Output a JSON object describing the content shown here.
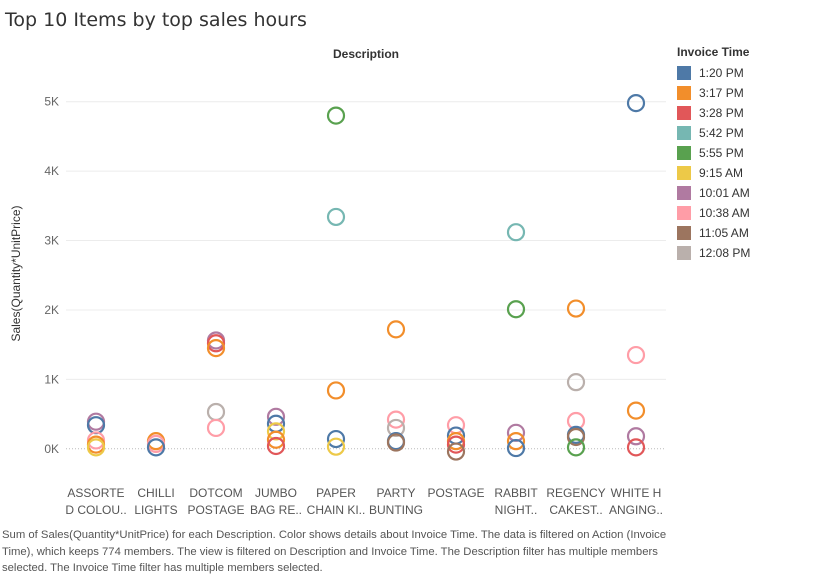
{
  "title": "Top 10 Items by top sales hours",
  "caption": "Sum of Sales(Quantity*UnitPrice) for each Description.  Color shows details about Invoice Time. The data is filtered on Action (Invoice Time), which keeps 774 members. The view is filtered on Description and Invoice Time. The Description filter has multiple members selected. The Invoice Time filter has multiple members selected.",
  "legend": {
    "title": "Invoice Time",
    "items": [
      {
        "label": "1:20 PM",
        "color": "#4e79a7"
      },
      {
        "label": "3:17 PM",
        "color": "#f28e2b"
      },
      {
        "label": "3:28 PM",
        "color": "#e15759"
      },
      {
        "label": "5:42 PM",
        "color": "#76b7b2"
      },
      {
        "label": "5:55 PM",
        "color": "#59a14f"
      },
      {
        "label": "9:15 AM",
        "color": "#edc948"
      },
      {
        "label": "10:01 AM",
        "color": "#b07aa1"
      },
      {
        "label": "10:38 AM",
        "color": "#ff9da7"
      },
      {
        "label": "11:05 AM",
        "color": "#9c755f"
      },
      {
        "label": "12:08 PM",
        "color": "#bab0ac"
      }
    ]
  },
  "chart_data": {
    "type": "scatter",
    "title": "Top 10 Items by top sales hours",
    "column_header": "Description",
    "ylabel": "Sales(Quantity*UnitPrice)",
    "ylim": [
      -450,
      5500
    ],
    "y_ticks": [
      {
        "value": 0,
        "label": "0K"
      },
      {
        "value": 1000,
        "label": "1K"
      },
      {
        "value": 2000,
        "label": "2K"
      },
      {
        "value": 3000,
        "label": "3K"
      },
      {
        "value": 4000,
        "label": "4K"
      },
      {
        "value": 5000,
        "label": "5K"
      }
    ],
    "categories": [
      {
        "line1": "ASSORTE",
        "line2": "D COLOU.."
      },
      {
        "line1": "CHILLI",
        "line2": "LIGHTS"
      },
      {
        "line1": "DOTCOM",
        "line2": "POSTAGE"
      },
      {
        "line1": "JUMBO",
        "line2": "BAG RE.."
      },
      {
        "line1": "PAPER",
        "line2": "CHAIN KI.."
      },
      {
        "line1": "PARTY",
        "line2": "BUNTING"
      },
      {
        "line1": "POSTAGE",
        "line2": ""
      },
      {
        "line1": "RABBIT",
        "line2": "NIGHT.."
      },
      {
        "line1": "REGENCY",
        "line2": "CAKEST.."
      },
      {
        "line1": "WHITE H",
        "line2": "ANGING.."
      }
    ],
    "grid": true,
    "legend_position": "right",
    "points": [
      {
        "c": 0,
        "color": "#b07aa1",
        "y": 390
      },
      {
        "c": 0,
        "color": "#4e79a7",
        "y": 340
      },
      {
        "c": 0,
        "color": "#ff9da7",
        "y": 120
      },
      {
        "c": 0,
        "color": "#f28e2b",
        "y": 60
      },
      {
        "c": 0,
        "color": "#edc948",
        "y": 20
      },
      {
        "c": 1,
        "color": "#f28e2b",
        "y": 110
      },
      {
        "c": 1,
        "color": "#ff9da7",
        "y": 70
      },
      {
        "c": 1,
        "color": "#4e79a7",
        "y": 20
      },
      {
        "c": 2,
        "color": "#b07aa1",
        "y": 1560
      },
      {
        "c": 2,
        "color": "#e15759",
        "y": 1520
      },
      {
        "c": 2,
        "color": "#f28e2b",
        "y": 1450
      },
      {
        "c": 2,
        "color": "#bab0ac",
        "y": 530
      },
      {
        "c": 2,
        "color": "#ff9da7",
        "y": 300
      },
      {
        "c": 3,
        "color": "#b07aa1",
        "y": 460
      },
      {
        "c": 3,
        "color": "#4e79a7",
        "y": 360
      },
      {
        "c": 3,
        "color": "#edc948",
        "y": 250
      },
      {
        "c": 3,
        "color": "#f28e2b",
        "y": 130
      },
      {
        "c": 3,
        "color": "#e15759",
        "y": 40
      },
      {
        "c": 4,
        "color": "#59a14f",
        "y": 4800
      },
      {
        "c": 4,
        "color": "#76b7b2",
        "y": 3340
      },
      {
        "c": 4,
        "color": "#f28e2b",
        "y": 840
      },
      {
        "c": 4,
        "color": "#4e79a7",
        "y": 140
      },
      {
        "c": 4,
        "color": "#edc948",
        "y": 30
      },
      {
        "c": 5,
        "color": "#f28e2b",
        "y": 1720
      },
      {
        "c": 5,
        "color": "#ff9da7",
        "y": 420
      },
      {
        "c": 5,
        "color": "#bab0ac",
        "y": 300
      },
      {
        "c": 5,
        "color": "#4e79a7",
        "y": 110
      },
      {
        "c": 5,
        "color": "#9c755f",
        "y": 90
      },
      {
        "c": 6,
        "color": "#ff9da7",
        "y": 340
      },
      {
        "c": 6,
        "color": "#4e79a7",
        "y": 190
      },
      {
        "c": 6,
        "color": "#f28e2b",
        "y": 110
      },
      {
        "c": 6,
        "color": "#e15759",
        "y": 60
      },
      {
        "c": 6,
        "color": "#9c755f",
        "y": -40
      },
      {
        "c": 7,
        "color": "#76b7b2",
        "y": 3120
      },
      {
        "c": 7,
        "color": "#59a14f",
        "y": 2010
      },
      {
        "c": 7,
        "color": "#b07aa1",
        "y": 230
      },
      {
        "c": 7,
        "color": "#f28e2b",
        "y": 110
      },
      {
        "c": 7,
        "color": "#4e79a7",
        "y": 10
      },
      {
        "c": 8,
        "color": "#f28e2b",
        "y": 2020
      },
      {
        "c": 8,
        "color": "#bab0ac",
        "y": 960
      },
      {
        "c": 8,
        "color": "#ff9da7",
        "y": 400
      },
      {
        "c": 8,
        "color": "#4e79a7",
        "y": 200
      },
      {
        "c": 8,
        "color": "#9c755f",
        "y": 170
      },
      {
        "c": 8,
        "color": "#59a14f",
        "y": 20
      },
      {
        "c": 9,
        "color": "#4e79a7",
        "y": 4980
      },
      {
        "c": 9,
        "color": "#ff9da7",
        "y": 1350
      },
      {
        "c": 9,
        "color": "#f28e2b",
        "y": 550
      },
      {
        "c": 9,
        "color": "#b07aa1",
        "y": 180
      },
      {
        "c": 9,
        "color": "#e15759",
        "y": 20
      }
    ]
  }
}
